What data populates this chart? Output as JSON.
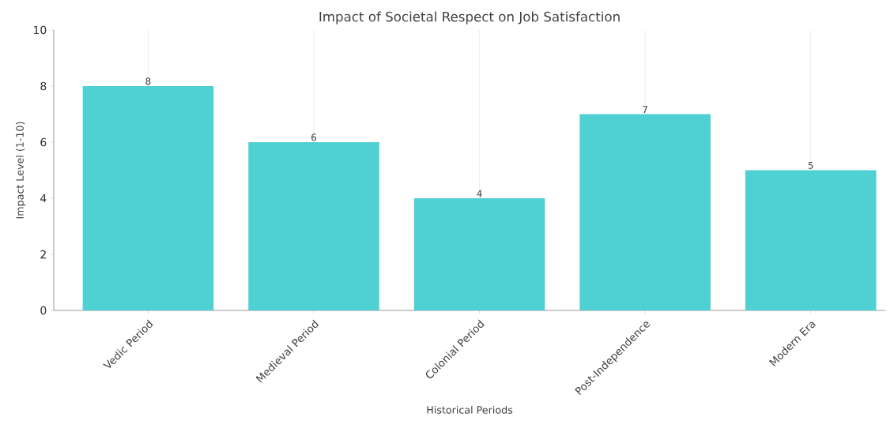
{
  "chart_data": {
    "type": "bar",
    "title": "Impact of Societal Respect on Job Satisfaction",
    "xlabel": "Historical Periods",
    "ylabel": "Impact Level (1-10)",
    "categories": [
      "Vedic Period",
      "Medieval Period",
      "Colonial Period",
      "Post-Independence",
      "Modern Era"
    ],
    "values": [
      8,
      6,
      4,
      7,
      5
    ],
    "color": "#4fd0d3",
    "ylim": [
      0,
      10
    ],
    "yticks": [
      0,
      2,
      4,
      6,
      8,
      10
    ],
    "grid": "x",
    "data_labels": true
  }
}
